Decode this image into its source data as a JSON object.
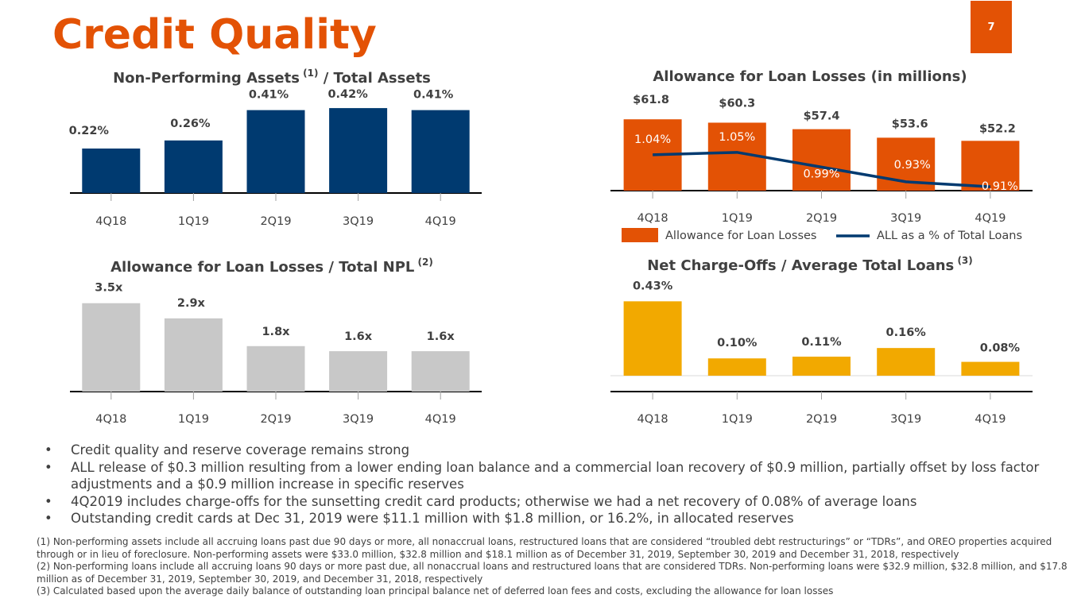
{
  "title": "Credit Quality",
  "page_number": "7",
  "colors": {
    "orange": "#e35205",
    "navy": "#003a70",
    "gray": "#c8c8c8",
    "gold": "#f2a900",
    "text": "#404040"
  },
  "chart_data": [
    {
      "id": "npa",
      "type": "bar",
      "title": "Non-Performing Assets",
      "title_sup": "(1)",
      "title_suffix": "/ Total Assets",
      "categories": [
        "4Q18",
        "1Q19",
        "2Q19",
        "3Q19",
        "4Q19"
      ],
      "values": [
        0.22,
        0.26,
        0.41,
        0.42,
        0.41
      ],
      "labels": [
        "0.22%",
        "0.26%",
        "0.41%",
        "0.42%",
        "0.41%"
      ],
      "ylim": [
        0,
        0.44
      ],
      "color": "#003a70"
    },
    {
      "id": "allowance",
      "type": "bar",
      "title": "Allowance for Loan Losses (in millions)",
      "categories": [
        "4Q18",
        "1Q19",
        "2Q19",
        "3Q19",
        "4Q19"
      ],
      "series": [
        {
          "name": "Allowance for Loan Losses",
          "type": "bar",
          "values": [
            61.8,
            60.3,
            57.4,
            53.6,
            52.2
          ],
          "labels": [
            "$61.8",
            "$60.3",
            "$57.4",
            "$53.6",
            "$52.2"
          ],
          "color": "#e35205"
        },
        {
          "name": "ALL as a % of Total Loans",
          "type": "line",
          "values": [
            1.04,
            1.05,
            0.99,
            0.93,
            0.91
          ],
          "labels": [
            "1.04%",
            "1.05%",
            "0.99%",
            "0.93%",
            "0.91%"
          ],
          "color": "#003a70"
        }
      ],
      "legend": [
        "Allowance for Loan Losses",
        "ALL as a % of Total Loans"
      ]
    },
    {
      "id": "coverage",
      "type": "bar",
      "title": "Allowance for Loan Losses / Total NPL",
      "title_sup": "(2)",
      "categories": [
        "4Q18",
        "1Q19",
        "2Q19",
        "3Q19",
        "4Q19"
      ],
      "values": [
        3.5,
        2.9,
        1.8,
        1.6,
        1.6
      ],
      "labels": [
        "3.5x",
        "2.9x",
        "1.8x",
        "1.6x",
        "1.6x"
      ],
      "ylim": [
        0,
        3.9
      ],
      "color": "#c8c8c8"
    },
    {
      "id": "nco",
      "type": "bar",
      "title": "Net Charge-Offs / Average Total Loans",
      "title_sup": "(3)",
      "categories": [
        "4Q18",
        "1Q19",
        "2Q19",
        "3Q19",
        "4Q19"
      ],
      "values": [
        0.43,
        0.1,
        0.11,
        0.16,
        0.08
      ],
      "labels": [
        "0.43%",
        "0.10%",
        "0.11%",
        "0.16%",
        "0.08%"
      ],
      "ylim": [
        0,
        0.45
      ],
      "color": "#f2a900"
    }
  ],
  "bullets": [
    "Credit quality and reserve coverage remains strong",
    "ALL release of $0.3 million resulting from a lower ending loan balance and a commercial loan recovery of $0.9 million, partially offset by loss factor adjustments and a $0.9 million increase in specific reserves",
    "4Q2019 includes charge-offs for the sunsetting credit card products; otherwise we had a net recovery of 0.08% of average loans",
    "Outstanding credit cards at Dec 31, 2019 were $11.1 million with $1.8 million, or 16.2%, in allocated reserves"
  ],
  "footnotes": [
    "(1) Non-performing assets include all accruing loans past due 90 days or more, all nonaccrual loans, restructured loans that are considered “troubled debt restructurings” or “TDRs”, and OREO properties acquired through or in lieu of foreclosure.  Non-performing assets were $33.0 million, $32.8 million and $18.1 million as of December 31, 2019, September 30, 2019 and December 31, 2018, respectively",
    "(2) Non-performing loans include all accruing loans 90 days or more past due, all nonaccrual loans and restructured loans that are considered TDRs. Non-performing loans were $32.9 million, $32.8 million, and $17.8 million as of December 31, 2019, September 30, 2019, and December 31, 2018, respectively",
    "(3) Calculated based upon the average daily balance of outstanding loan principal balance net of deferred loan fees and costs, excluding the allowance for loan losses"
  ]
}
